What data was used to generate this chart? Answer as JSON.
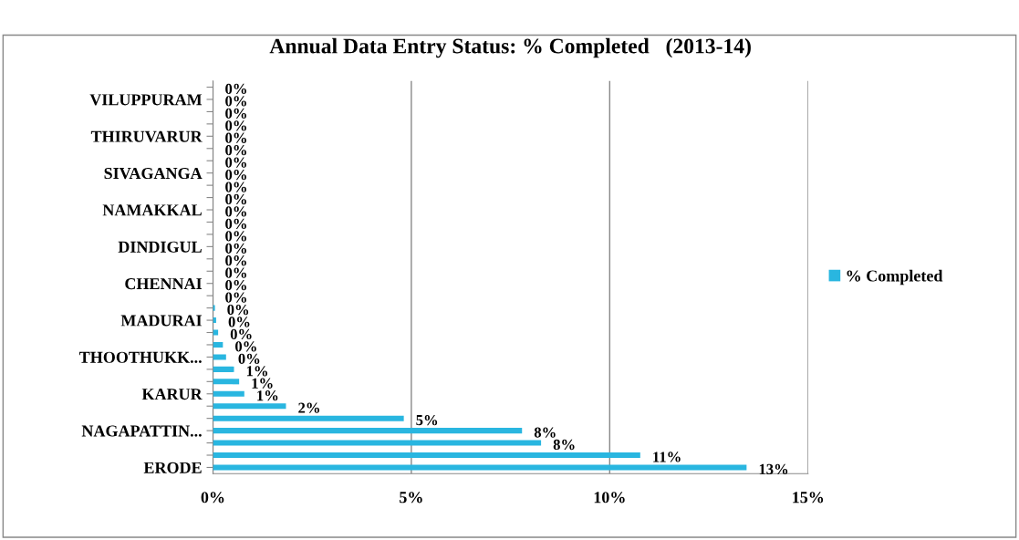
{
  "chart_data": {
    "type": "bar",
    "orientation": "horizontal",
    "title": "Annual Data Entry Status: % Completed   (2013-14)",
    "categories": [
      null,
      "VILUPPURAM",
      null,
      null,
      "THIRUVARUR",
      null,
      null,
      "SIVAGANGA",
      null,
      null,
      "NAMAKKAL",
      null,
      null,
      "DINDIGUL",
      null,
      null,
      "CHENNAI",
      null,
      null,
      "MADURAI",
      null,
      null,
      "THOOTHUKK...",
      null,
      null,
      "KARUR",
      null,
      null,
      "NAGAPATTIN...",
      null,
      null,
      "ERODE"
    ],
    "series": [
      {
        "name": "% Completed",
        "color": "#29b6e0",
        "values": [
          0,
          0,
          0,
          0,
          0,
          0,
          0,
          0,
          0,
          0,
          0,
          0,
          0,
          0,
          0,
          0,
          0,
          0,
          0.05,
          0.08,
          0.13,
          0.25,
          0.33,
          0.53,
          0.66,
          0.79,
          1.84,
          4.81,
          7.79,
          8.27,
          10.77,
          13.45
        ],
        "value_labels": [
          "0%",
          "0%",
          "0%",
          "0%",
          "0%",
          "0%",
          "0%",
          "0%",
          "0%",
          "0%",
          "0%",
          "0%",
          "0%",
          "0%",
          "0%",
          "0%",
          "0%",
          "0%",
          "0%",
          "0%",
          "0%",
          "0%",
          "0%",
          "1%",
          "1%",
          "1%",
          "2%",
          "5%",
          "8%",
          "8%",
          "11%",
          "13%"
        ]
      }
    ],
    "xlim": [
      0,
      15
    ],
    "xticks": [
      {
        "value": 0,
        "label": "0%"
      },
      {
        "value": 5,
        "label": "5%"
      },
      {
        "value": 10,
        "label": "10%"
      },
      {
        "value": 15,
        "label": "15%"
      }
    ],
    "grid": "x",
    "legend": "right"
  }
}
